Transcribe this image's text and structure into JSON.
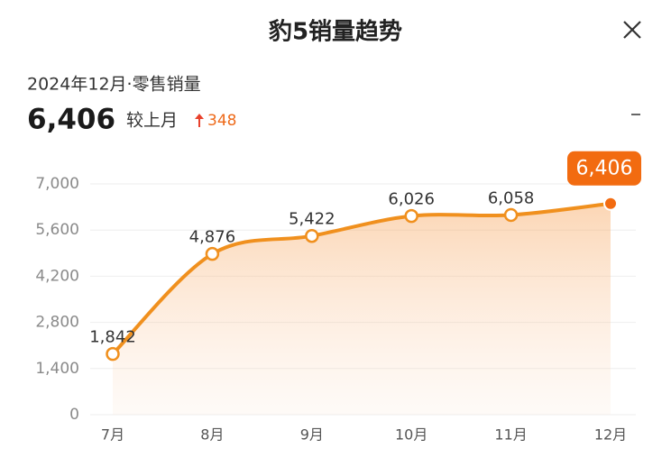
{
  "header": {
    "title": "豹5销量趋势",
    "subtitle": "2024年12月·零售销量",
    "value": "6,406",
    "compare_label": "较上月",
    "change": "348"
  },
  "chart_data": {
    "type": "line",
    "categories": [
      "7月",
      "8月",
      "9月",
      "10月",
      "11月",
      "12月"
    ],
    "series": [
      {
        "name": "零售销量",
        "color": "#f0901e",
        "values": [
          1842,
          4876,
          5422,
          6026,
          6058,
          6406
        ],
        "value_labels": [
          "1,842",
          "4,876",
          "5,422",
          "6,026",
          "6,058",
          "6,406"
        ]
      }
    ],
    "ylim": [
      0,
      7000
    ],
    "yticks": [
      0,
      {
        "value": 1400,
        "label": "1,400"
      },
      {
        "value": 2800,
        "label": "2,800"
      },
      {
        "value": 4200,
        "label": "4,200"
      },
      {
        "value": 5600,
        "label": "5,600"
      },
      {
        "value": 7000,
        "label": "7,000"
      }
    ],
    "grid": true
  }
}
